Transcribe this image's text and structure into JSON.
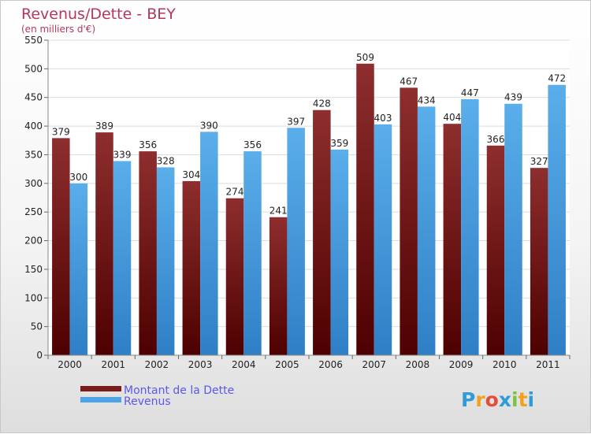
{
  "chart_data": {
    "type": "bar",
    "title": "Revenus/Dette - BEY",
    "subtitle": "(en milliers d'€)",
    "categories": [
      "2000",
      "2001",
      "2002",
      "2003",
      "2004",
      "2005",
      "2006",
      "2007",
      "2008",
      "2009",
      "2010",
      "2011"
    ],
    "series": [
      {
        "name": "Montant de la Dette",
        "values": [
          379,
          389,
          356,
          304,
          274,
          241,
          428,
          509,
          467,
          404,
          366,
          327
        ],
        "color": "#7a1c1c"
      },
      {
        "name": "Revenus",
        "values": [
          300,
          339,
          328,
          390,
          356,
          397,
          359,
          403,
          434,
          447,
          439,
          472
        ],
        "color": "#4ea3e6"
      }
    ],
    "ylim": [
      0,
      550
    ],
    "yticks": [
      0,
      50,
      100,
      150,
      200,
      250,
      300,
      350,
      400,
      450,
      500,
      550
    ],
    "grid": true,
    "legend_position": "bottom-left"
  },
  "logo": {
    "text": "Proxiti",
    "letters": [
      "P",
      "r",
      "o",
      "x",
      "i",
      "t",
      "i"
    ],
    "colors": [
      "#2f9bd9",
      "#f2a11f",
      "#e84b3a",
      "#2f9bd9",
      "#7cc242",
      "#f2a11f",
      "#2f9bd9"
    ]
  }
}
